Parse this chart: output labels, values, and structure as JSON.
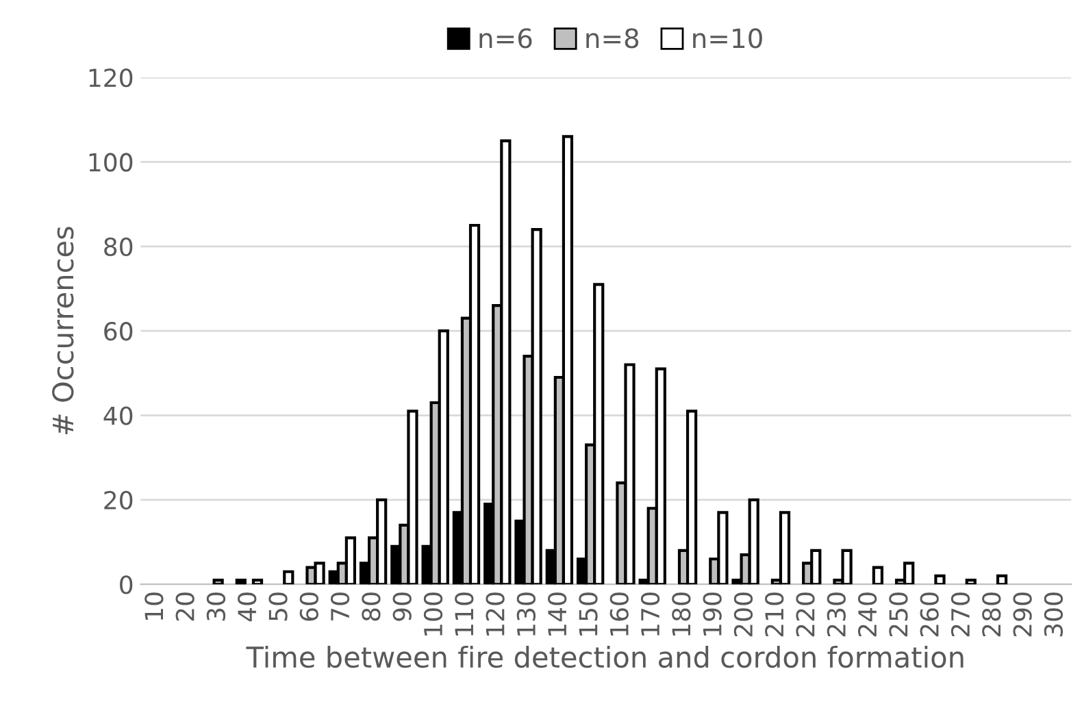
{
  "chart_data": {
    "type": "bar",
    "xlabel": "Time between fire detection and cordon formation",
    "ylabel": "# Occurrences",
    "categories": [
      "10",
      "20",
      "30",
      "40",
      "50",
      "60",
      "70",
      "80",
      "90",
      "100",
      "110",
      "120",
      "130",
      "140",
      "150",
      "160",
      "170",
      "180",
      "190",
      "200",
      "210",
      "220",
      "230",
      "240",
      "250",
      "260",
      "270",
      "280",
      "290",
      "300"
    ],
    "series": [
      {
        "name": "n=6",
        "color": "#000000",
        "values": [
          null,
          null,
          null,
          1,
          null,
          null,
          3,
          5,
          9,
          9,
          17,
          19,
          15,
          8,
          6,
          null,
          1,
          null,
          null,
          1,
          null,
          null,
          null,
          null,
          null,
          null,
          null,
          null,
          null,
          null
        ]
      },
      {
        "name": "n=8",
        "color": "#bfbfbf",
        "values": [
          null,
          null,
          1,
          null,
          null,
          4,
          5,
          11,
          14,
          43,
          63,
          66,
          54,
          49,
          33,
          24,
          18,
          8,
          6,
          7,
          1,
          5,
          1,
          null,
          1,
          null,
          null,
          null,
          null,
          null
        ]
      },
      {
        "name": "n=10",
        "color": "#ffffff",
        "values": [
          null,
          null,
          null,
          1,
          3,
          5,
          11,
          20,
          41,
          60,
          85,
          105,
          84,
          106,
          71,
          52,
          51,
          41,
          17,
          20,
          17,
          8,
          8,
          4,
          5,
          2,
          1,
          2,
          null,
          null
        ]
      }
    ],
    "ylim": [
      0,
      120
    ],
    "yticks": [
      0,
      20,
      40,
      60,
      80,
      100,
      120
    ],
    "grid": "y",
    "legend": "top"
  }
}
